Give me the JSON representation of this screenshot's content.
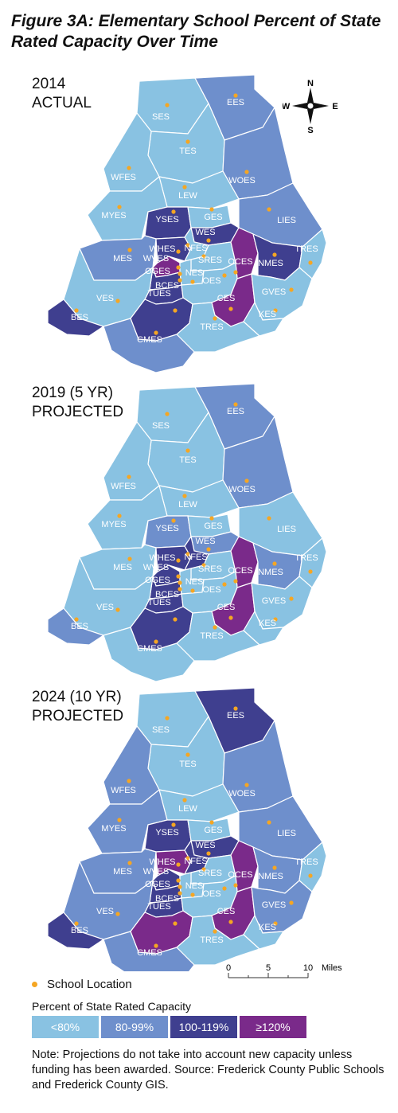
{
  "title": "Figure 3A: Elementary School Percent of State Rated Capacity Over Time",
  "colors": {
    "lt80": "#89c2e2",
    "c80_99": "#6e8fcc",
    "c100_119": "#3f3f8f",
    "ge120": "#7a2a8a",
    "dot": "#f5a623"
  },
  "maps": [
    {
      "label": "2014\nACTUAL",
      "label_line1": "2014",
      "label_line2": "ACTUAL",
      "schools": [
        {
          "name": "SES",
          "cls": "lt80"
        },
        {
          "name": "EES",
          "cls": "c80_99"
        },
        {
          "name": "TES",
          "cls": "lt80"
        },
        {
          "name": "WFES",
          "cls": "lt80"
        },
        {
          "name": "WOES",
          "cls": "c80_99"
        },
        {
          "name": "LEW",
          "cls": "lt80"
        },
        {
          "name": "MYES",
          "cls": "lt80"
        },
        {
          "name": "YSES",
          "cls": "c100_119"
        },
        {
          "name": "GES",
          "cls": "lt80"
        },
        {
          "name": "LIES",
          "cls": "c80_99"
        },
        {
          "name": "WES",
          "cls": "c100_119"
        },
        {
          "name": "MES",
          "cls": "c80_99"
        },
        {
          "name": "WHES",
          "cls": "c100_119"
        },
        {
          "name": "NFES",
          "cls": "lt80"
        },
        {
          "name": "WVES",
          "cls": "ge120"
        },
        {
          "name": "SRES",
          "cls": "lt80"
        },
        {
          "name": "OCES",
          "cls": "ge120"
        },
        {
          "name": "NMES",
          "cls": "c100_119"
        },
        {
          "name": "TRES",
          "cls": "lt80"
        },
        {
          "name": "OGES",
          "cls": "c100_119"
        },
        {
          "name": "NES",
          "cls": "lt80"
        },
        {
          "name": "BCES",
          "cls": "c100_119"
        },
        {
          "name": "OES",
          "cls": "lt80"
        },
        {
          "name": "VES",
          "cls": "lt80"
        },
        {
          "name": "TUES",
          "cls": "c100_119"
        },
        {
          "name": "CES",
          "cls": "ge120"
        },
        {
          "name": "GVES",
          "cls": "lt80"
        },
        {
          "name": "KES",
          "cls": "lt80"
        },
        {
          "name": "BES",
          "cls": "c100_119"
        },
        {
          "name": "TRES2",
          "label": "TRES",
          "cls": "lt80"
        },
        {
          "name": "CMES",
          "cls": "c80_99"
        }
      ]
    },
    {
      "label_line1": "2019 (5 YR)",
      "label_line2": "PROJECTED",
      "schools": [
        {
          "name": "SES",
          "cls": "lt80"
        },
        {
          "name": "EES",
          "cls": "c80_99"
        },
        {
          "name": "TES",
          "cls": "lt80"
        },
        {
          "name": "WFES",
          "cls": "lt80"
        },
        {
          "name": "WOES",
          "cls": "c80_99"
        },
        {
          "name": "LEW",
          "cls": "lt80"
        },
        {
          "name": "MYES",
          "cls": "lt80"
        },
        {
          "name": "YSES",
          "cls": "c80_99"
        },
        {
          "name": "GES",
          "cls": "lt80"
        },
        {
          "name": "LIES",
          "cls": "lt80"
        },
        {
          "name": "WES",
          "cls": "c80_99"
        },
        {
          "name": "MES",
          "cls": "lt80"
        },
        {
          "name": "WHES",
          "cls": "c100_119"
        },
        {
          "name": "NFES",
          "cls": "c100_119"
        },
        {
          "name": "WVES",
          "cls": "c100_119"
        },
        {
          "name": "SRES",
          "cls": "lt80"
        },
        {
          "name": "OCES",
          "cls": "ge120"
        },
        {
          "name": "NMES",
          "cls": "c80_99"
        },
        {
          "name": "TRES",
          "cls": "lt80"
        },
        {
          "name": "OGES",
          "cls": "c100_119"
        },
        {
          "name": "NES",
          "cls": "lt80"
        },
        {
          "name": "BCES",
          "cls": "c100_119"
        },
        {
          "name": "OES",
          "cls": "lt80"
        },
        {
          "name": "VES",
          "cls": "lt80"
        },
        {
          "name": "TUES",
          "cls": "c100_119"
        },
        {
          "name": "CES",
          "cls": "ge120"
        },
        {
          "name": "GVES",
          "cls": "lt80"
        },
        {
          "name": "KES",
          "cls": "lt80"
        },
        {
          "name": "BES",
          "cls": "c80_99"
        },
        {
          "name": "TRES2",
          "label": "TRES",
          "cls": "lt80"
        },
        {
          "name": "CMES",
          "cls": "lt80"
        }
      ]
    },
    {
      "label_line1": "2024 (10 YR)",
      "label_line2": "PROJECTED",
      "schools": [
        {
          "name": "SES",
          "cls": "lt80"
        },
        {
          "name": "EES",
          "cls": "c100_119"
        },
        {
          "name": "TES",
          "cls": "lt80"
        },
        {
          "name": "WFES",
          "cls": "c80_99"
        },
        {
          "name": "WOES",
          "cls": "c80_99"
        },
        {
          "name": "LEW",
          "cls": "lt80"
        },
        {
          "name": "MYES",
          "cls": "c80_99"
        },
        {
          "name": "YSES",
          "cls": "c100_119"
        },
        {
          "name": "GES",
          "cls": "lt80"
        },
        {
          "name": "LIES",
          "cls": "c80_99"
        },
        {
          "name": "WES",
          "cls": "c100_119"
        },
        {
          "name": "MES",
          "cls": "c80_99"
        },
        {
          "name": "WHES",
          "cls": "ge120"
        },
        {
          "name": "NFES",
          "cls": "c100_119"
        },
        {
          "name": "WVES",
          "cls": "c100_119"
        },
        {
          "name": "SRES",
          "cls": "lt80"
        },
        {
          "name": "OCES",
          "cls": "ge120"
        },
        {
          "name": "NMES",
          "cls": "c80_99"
        },
        {
          "name": "TRES",
          "cls": "lt80"
        },
        {
          "name": "OGES",
          "cls": "c100_119"
        },
        {
          "name": "NES",
          "cls": "lt80"
        },
        {
          "name": "BCES",
          "cls": "c100_119"
        },
        {
          "name": "OES",
          "cls": "lt80"
        },
        {
          "name": "VES",
          "cls": "c80_99"
        },
        {
          "name": "TUES",
          "cls": "ge120"
        },
        {
          "name": "CES",
          "cls": "ge120"
        },
        {
          "name": "GVES",
          "cls": "c80_99"
        },
        {
          "name": "KES",
          "cls": "lt80"
        },
        {
          "name": "BES",
          "cls": "c100_119"
        },
        {
          "name": "TRES2",
          "label": "TRES",
          "cls": "lt80"
        },
        {
          "name": "CMES",
          "cls": "c80_99"
        }
      ]
    }
  ],
  "compass": {
    "n": "N",
    "s": "S",
    "e": "E",
    "w": "W"
  },
  "scale": {
    "ticks": [
      "0",
      "5",
      "10"
    ],
    "unit": "Miles"
  },
  "legend": {
    "location_label": "School Location",
    "title": "Percent of State Rated Capacity",
    "items": [
      {
        "label": "<80%",
        "cls": "lt80"
      },
      {
        "label": "80-99%",
        "cls": "c80_99"
      },
      {
        "label": "100-119%",
        "cls": "c100_119"
      },
      {
        "label": "≥120%",
        "cls": "ge120"
      }
    ]
  },
  "note": "Note: Projections do not take into account new capacity unless funding has been awarded. Source: Frederick County Public Schools and Frederick County GIS."
}
